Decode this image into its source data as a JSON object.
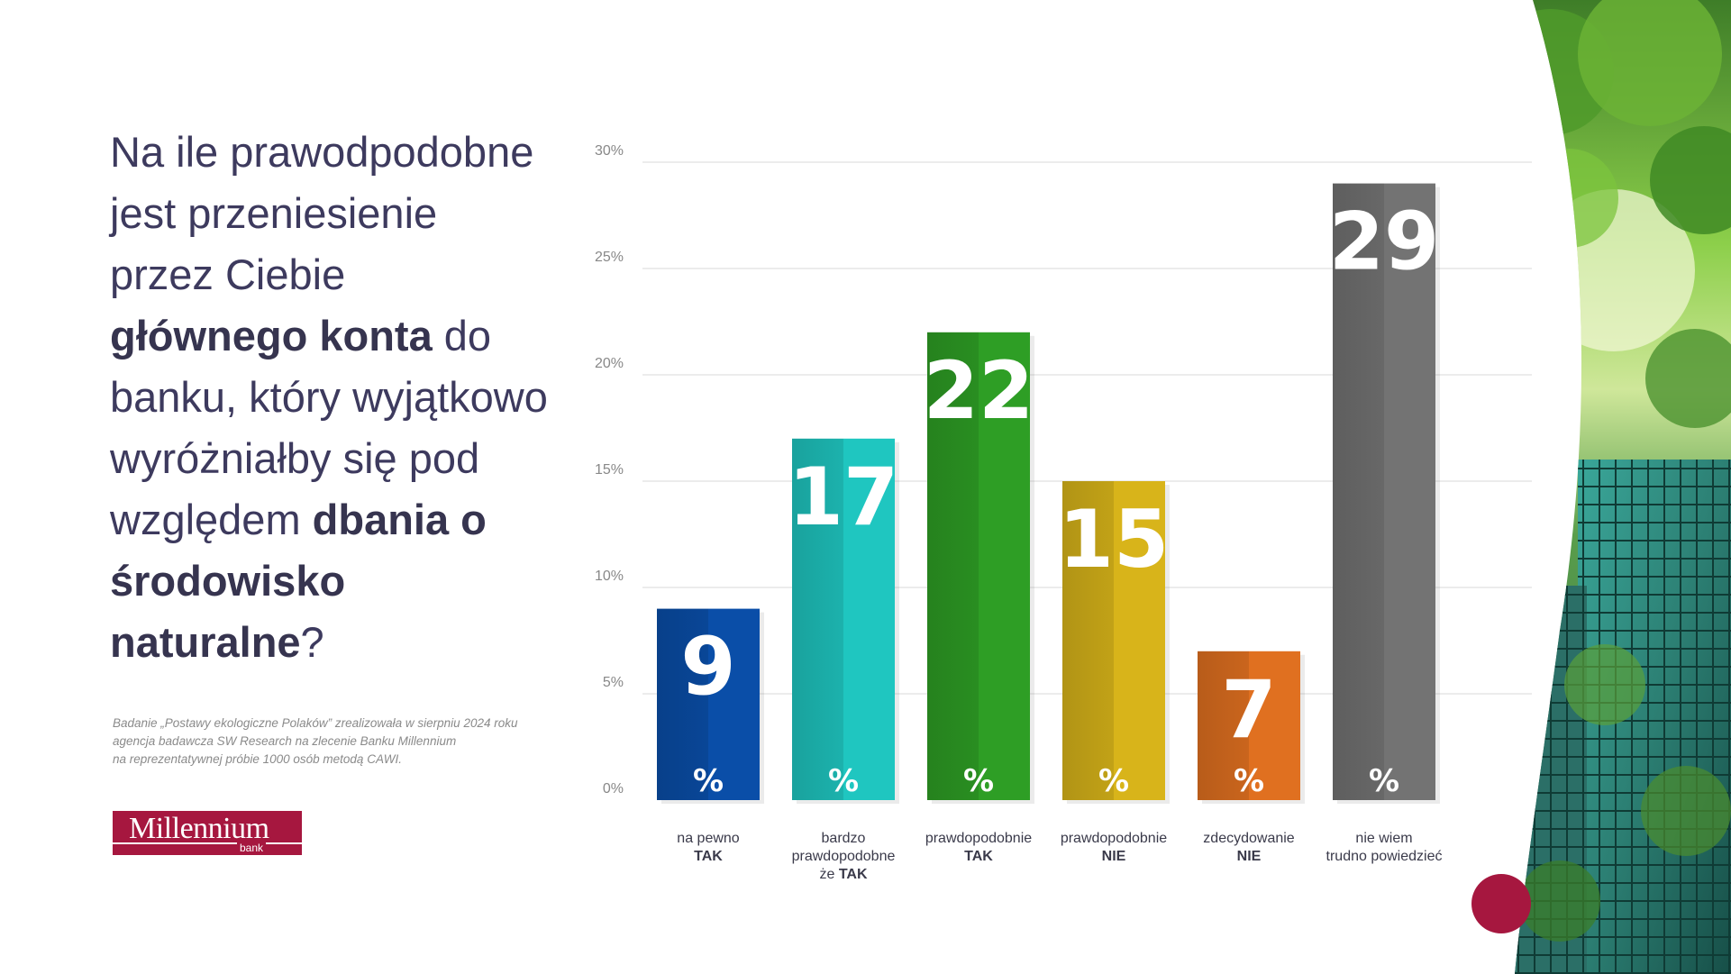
{
  "question": {
    "p1": "Na ile prawodpodobne jest przeniesienie przez Ciebie ",
    "b1": "głównego konta",
    "p2": " do banku, który wyjątkowo wyróżniałby się pod względem ",
    "b2": "dbania o środowisko naturalne",
    "p3": "?"
  },
  "note": {
    "line1": "Badanie „Postawy ekologiczne Polaków” zrealizowała w sierpniu 2024 roku",
    "line2": "agencja badawcza SW Research na zlecenie Banku Millennium",
    "line3": "na reprezentatywnej próbie 1000 osób metodą CAWI."
  },
  "logo": {
    "name": "Millennium",
    "sub": "bank"
  },
  "colors": {
    "accent": "#a6173f",
    "text": "#3d3a5e",
    "bars": [
      "#0a4ea8",
      "#1fc6c0",
      "#2e9e25",
      "#d8b41a",
      "#e07020",
      "#737373"
    ]
  },
  "chart_data": {
    "type": "bar",
    "categories": [
      [
        "na pewno",
        "TAK"
      ],
      [
        "bardzo",
        "prawdopodobne",
        "że TAK"
      ],
      [
        "prawdopodobnie",
        "TAK"
      ],
      [
        "prawdopodobnie",
        "NIE"
      ],
      [
        "zdecydowanie",
        "NIE"
      ],
      [
        "nie wiem",
        "trudno powiedzieć"
      ]
    ],
    "values": [
      9,
      17,
      22,
      15,
      7,
      29
    ],
    "value_unit": "%",
    "yticks": [
      "0%",
      "5%",
      "10%",
      "15%",
      "20%",
      "25%",
      "30%"
    ],
    "ylim": [
      0,
      30
    ],
    "grid": true
  }
}
